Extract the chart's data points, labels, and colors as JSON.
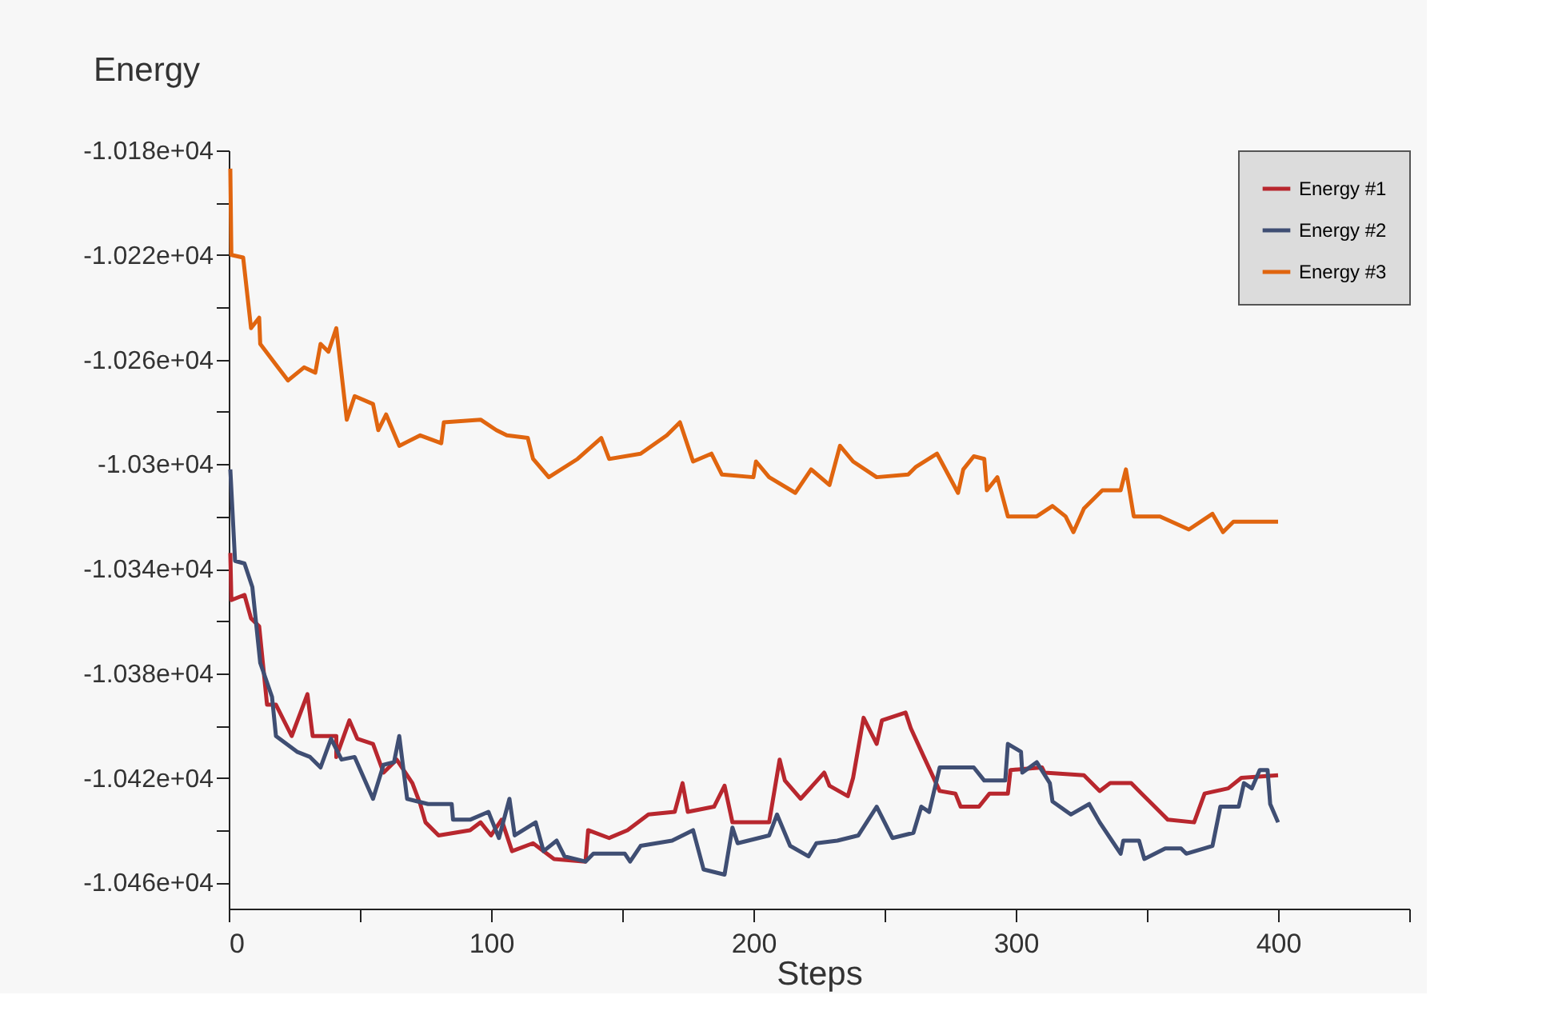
{
  "chart_data": {
    "type": "line",
    "xlabel": "Steps",
    "ylabel": "Energy",
    "xlim": [
      0,
      450
    ],
    "ylim": [
      -10470,
      -10180
    ],
    "xticks": [
      0,
      {
        "value": 50,
        "label": null
      },
      100,
      {
        "value": 150,
        "label": null
      },
      200,
      {
        "value": 250,
        "label": null
      },
      300,
      {
        "value": 350,
        "label": null
      },
      400,
      {
        "value": 450,
        "label": null
      }
    ],
    "yticks": [
      {
        "value": -10180,
        "label": "-1.018e+04"
      },
      {
        "value": -10200,
        "label": null
      },
      {
        "value": -10220,
        "label": "-1.022e+04"
      },
      {
        "value": -10240,
        "label": null
      },
      {
        "value": -10260,
        "label": "-1.026e+04"
      },
      {
        "value": -10280,
        "label": null
      },
      {
        "value": -10300,
        "label": "-1.03e+04"
      },
      {
        "value": -10320,
        "label": null
      },
      {
        "value": -10340,
        "label": "-1.034e+04"
      },
      {
        "value": -10360,
        "label": null
      },
      {
        "value": -10380,
        "label": "-1.038e+04"
      },
      {
        "value": -10400,
        "label": null
      },
      {
        "value": -10420,
        "label": "-1.042e+04"
      },
      {
        "value": -10440,
        "label": null
      },
      {
        "value": -10460,
        "label": "-1.046e+04"
      }
    ],
    "grid": false,
    "legend": "top right",
    "marker": "none",
    "line_style": "solid",
    "series": [
      {
        "name": "Energy #1",
        "color": "#b8272e",
        "x": [
          0.6,
          1,
          6,
          8.5,
          11.6,
          14.6,
          18,
          24,
          30,
          32,
          41,
          41,
          46,
          49,
          55,
          59,
          64,
          70,
          73,
          75,
          80,
          92,
          96,
          100,
          104,
          108,
          116,
          124,
          136,
          137,
          145,
          152,
          160,
          170,
          173,
          175,
          185,
          189,
          192,
          206,
          210,
          212,
          218,
          227,
          229,
          236,
          238,
          242,
          247,
          249,
          258,
          260,
          265,
          271,
          277,
          279,
          286,
          290,
          297,
          298,
          310,
          311,
          326,
          332,
          336,
          344,
          348,
          352,
          358,
          368,
          372,
          381,
          386,
          400
        ],
        "values": [
          -10334,
          -10352,
          -10350,
          -10359,
          -10362,
          -10392,
          -10392,
          -10404,
          -10388,
          -10404,
          -10404,
          -10412,
          -10398,
          -10405,
          -10407,
          -10418,
          -10413,
          -10422,
          -10430,
          -10437,
          -10442,
          -10440,
          -10437,
          -10442,
          -10436,
          -10448,
          -10445,
          -10451,
          -10452,
          -10440,
          -10443,
          -10440,
          -10434,
          -10433,
          -10422,
          -10433,
          -10431,
          -10423,
          -10437,
          -10437,
          -10413,
          -10421,
          -10428,
          -10418,
          -10423,
          -10427,
          -10420,
          -10397,
          -10407,
          -10398,
          -10395,
          -10401,
          -10412,
          -10425,
          -10426,
          -10431,
          -10431,
          -10426,
          -10426,
          -10417,
          -10416,
          -10418,
          -10419,
          -10425,
          -10422,
          -10422,
          -10426,
          -10430,
          -10436,
          -10437,
          -10426,
          -10424,
          -10420,
          -10419
        ]
      },
      {
        "name": "Energy #2",
        "color": "#3f4e73",
        "x": [
          0.6,
          2.4,
          6,
          9,
          12,
          16.5,
          18,
          26,
          31,
          35,
          39,
          43,
          48,
          55,
          59,
          63,
          65,
          68,
          76,
          85,
          85.5,
          92,
          99,
          103,
          107,
          109,
          117,
          120,
          125,
          128,
          136,
          139,
          151,
          153,
          157,
          169,
          177,
          181,
          189,
          192,
          194,
          206,
          209,
          214,
          221,
          224,
          232,
          240,
          247,
          253,
          261,
          264,
          267,
          271,
          284,
          288,
          296,
          297,
          302,
          302.5,
          308,
          313,
          314,
          321,
          328,
          332,
          336,
          340,
          341,
          347,
          349,
          357,
          363,
          365,
          375,
          378,
          385,
          387,
          390,
          393,
          396,
          397,
          400
        ],
        "values": [
          -10302,
          -10337,
          -10338,
          -10347,
          -10376,
          -10389,
          -10404,
          -10410,
          -10412,
          -10416,
          -10405,
          -10413,
          -10412,
          -10428,
          -10415,
          -10414,
          -10404,
          -10428,
          -10430,
          -10430,
          -10436,
          -10436,
          -10433,
          -10443,
          -10428,
          -10442,
          -10437,
          -10448,
          -10444,
          -10450,
          -10452,
          -10449,
          -10449,
          -10452,
          -10446,
          -10444,
          -10440,
          -10455,
          -10457,
          -10439,
          -10445,
          -10442,
          -10434,
          -10446,
          -10450,
          -10445,
          -10444,
          -10442,
          -10431,
          -10443,
          -10441,
          -10431,
          -10433,
          -10416,
          -10416,
          -10421,
          -10421,
          -10407,
          -10410,
          -10418,
          -10414,
          -10422,
          -10429,
          -10434,
          -10430,
          -10437,
          -10443,
          -10449,
          -10444,
          -10444,
          -10451,
          -10447,
          -10447,
          -10449,
          -10446,
          -10431,
          -10431,
          -10422,
          -10424,
          -10417,
          -10417,
          -10430,
          -10437
        ]
      },
      {
        "name": "Energy #3",
        "color": "#e0650f",
        "x": [
          0.6,
          1,
          5.5,
          8.5,
          11.6,
          12,
          18,
          22.6,
          28.7,
          33,
          35,
          38,
          41,
          45,
          48,
          55,
          57,
          60,
          65,
          73,
          81,
          82,
          96,
          102,
          106,
          114,
          116,
          122,
          133,
          142,
          145,
          157,
          167,
          172,
          177,
          184,
          188,
          200,
          201,
          206,
          216,
          222,
          229,
          233,
          238,
          247,
          259,
          262,
          270,
          278,
          280,
          284,
          288,
          289,
          293,
          297,
          308,
          314,
          319,
          322,
          326,
          333,
          340,
          342,
          345,
          355,
          366,
          375,
          379,
          383,
          400
        ],
        "values": [
          -10187,
          -10220,
          -10221,
          -10248,
          -10244,
          -10254,
          -10262,
          -10268,
          -10263,
          -10265,
          -10254,
          -10257,
          -10248,
          -10283,
          -10274,
          -10277,
          -10287,
          -10281,
          -10293,
          -10289,
          -10292,
          -10284,
          -10283,
          -10287,
          -10289,
          -10290,
          -10298,
          -10305,
          -10298,
          -10290,
          -10298,
          -10296,
          -10289,
          -10284,
          -10299,
          -10296,
          -10304,
          -10305,
          -10299,
          -10305,
          -10311,
          -10302,
          -10308,
          -10293,
          -10299,
          -10305,
          -10304,
          -10301,
          -10296,
          -10311,
          -10302,
          -10297,
          -10298,
          -10310,
          -10305,
          -10320,
          -10320,
          -10316,
          -10320,
          -10326,
          -10317,
          -10310,
          -10310,
          -10302,
          -10320,
          -10320,
          -10325,
          -10319,
          -10326,
          -10322,
          -10322
        ]
      }
    ]
  }
}
